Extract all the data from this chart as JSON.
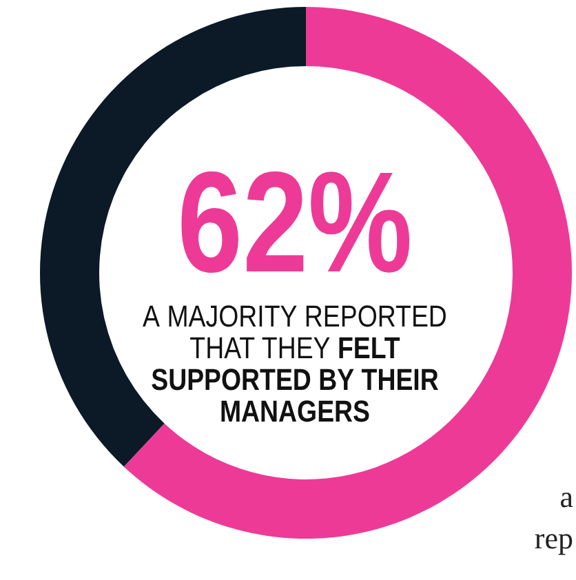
{
  "chart_data": {
    "type": "donut",
    "title": "62%",
    "subtitle": "A MAJORITY REPORTED THAT THEY FELT SUPPORTED BY THEIR MANAGERS",
    "categories": [
      null,
      null
    ],
    "values": [
      62,
      38
    ],
    "colors": [
      "#ee3a97",
      "#0b1a26"
    ],
    "annotations": [
      "a",
      "rep"
    ]
  }
}
